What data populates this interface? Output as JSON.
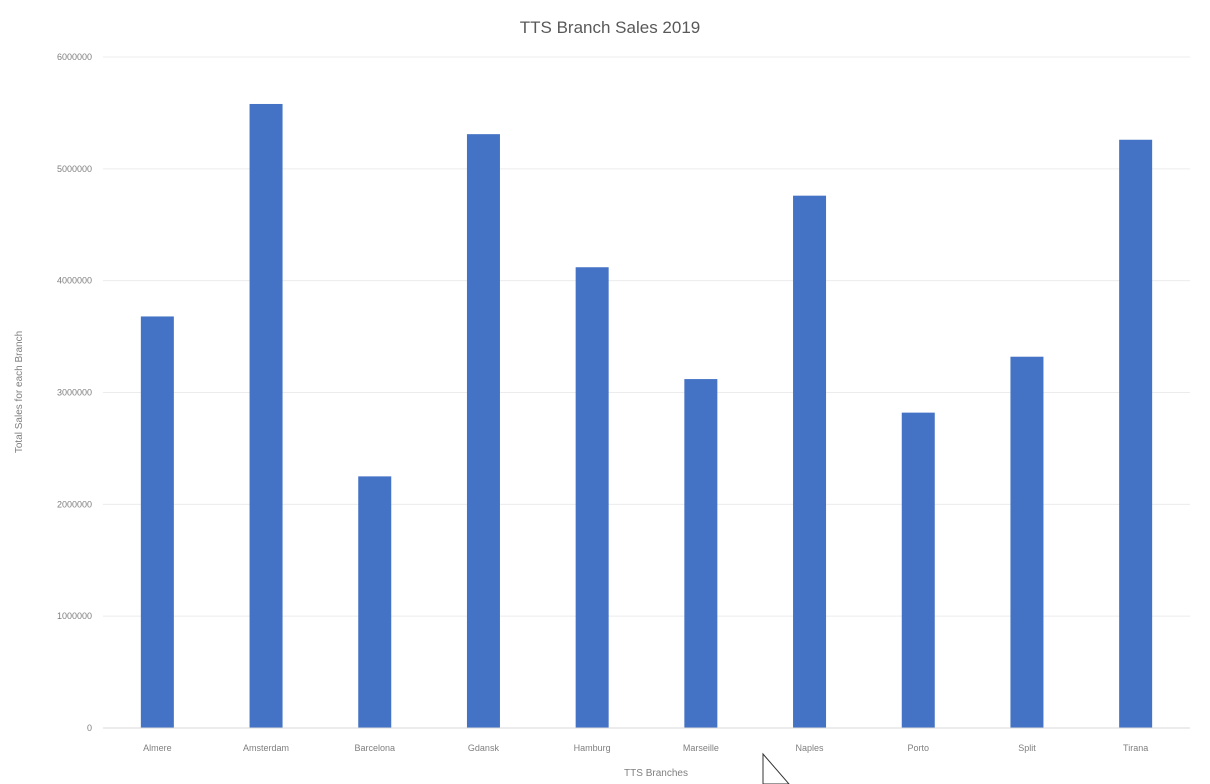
{
  "chart_data": {
    "type": "bar",
    "title": "TTS Branch Sales 2019",
    "xlabel": "TTS Branches",
    "ylabel": "Total Sales for each Branch",
    "categories": [
      "Almere",
      "Amsterdam",
      "Barcelona",
      "Gdansk",
      "Hamburg",
      "Marseille",
      "Naples",
      "Porto",
      "Split",
      "Tirana"
    ],
    "values": [
      3680000,
      5580000,
      2250000,
      5310000,
      4120000,
      3120000,
      4760000,
      2820000,
      3320000,
      5260000
    ],
    "yticks": [
      "0",
      "1000000",
      "2000000",
      "3000000",
      "4000000",
      "5000000",
      "6000000"
    ],
    "ylim": [
      0,
      6000000
    ],
    "grid": true,
    "legend": "none",
    "bar_color": "#4472c4"
  }
}
